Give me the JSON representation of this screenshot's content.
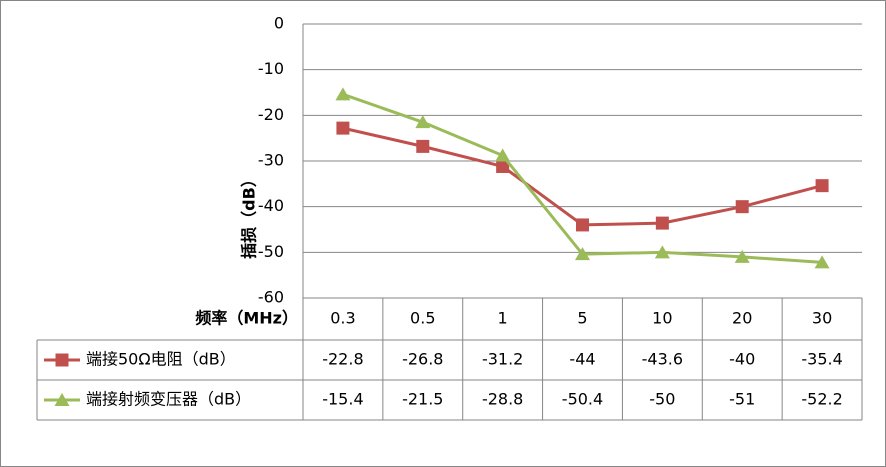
{
  "chart_data": {
    "type": "line",
    "ylabel": "插损（dB）",
    "xlabel": "频率（MHz）",
    "categories": [
      "0.3",
      "0.5",
      "1",
      "5",
      "10",
      "20",
      "30"
    ],
    "ylim": [
      -60,
      0
    ],
    "yticks": [
      "0",
      "-10",
      "-20",
      "-30",
      "-40",
      "-50",
      "-60"
    ],
    "grid": true,
    "legend": "data-table-left",
    "series": [
      {
        "name": "端接50Ω电阻（dB）",
        "values": [
          -22.8,
          -26.8,
          -31.2,
          -44,
          -43.6,
          -40,
          -35.4
        ],
        "labels": [
          "-22.8",
          "-26.8",
          "-31.2",
          "-44",
          "-43.6",
          "-40",
          "-35.4"
        ],
        "color": "#C0504D",
        "marker": "square"
      },
      {
        "name": "端接射频变压器（dB）",
        "values": [
          -15.4,
          -21.5,
          -28.8,
          -50.4,
          -50,
          -51,
          -52.2
        ],
        "labels": [
          "-15.4",
          "-21.5",
          "-28.8",
          "-50.4",
          "-50",
          "-51",
          "-52.2"
        ],
        "color": "#9BBB59",
        "marker": "triangle"
      }
    ]
  }
}
